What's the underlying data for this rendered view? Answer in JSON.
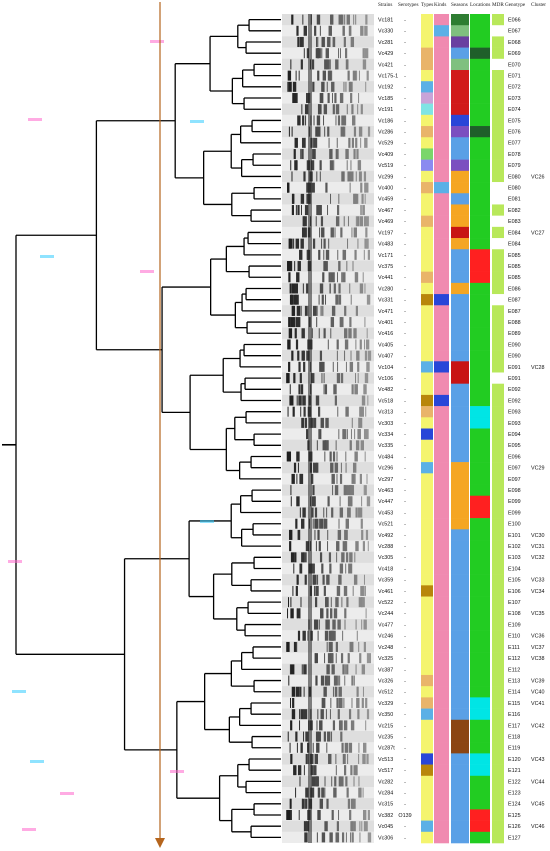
{
  "headers": [
    "Strains",
    "Serotypes",
    "Types",
    "Kinds",
    "Seasons",
    "Locations",
    "MDR",
    "Genotype",
    "Cluster"
  ],
  "strains": [
    "Vc181",
    "Vc330",
    "Vc281",
    "Vc429",
    "Vc421",
    "Vc175-1",
    "Vc192",
    "Vc185",
    "Vc191",
    "Vc186",
    "Vc286",
    "Vc529",
    "Vc409",
    "Vc519",
    "Vc299",
    "Vc400",
    "Vc459",
    "Vc467",
    "Vc469",
    "Vc197",
    "Vc483",
    "Vc171",
    "Vc375",
    "Vc441",
    "Vc280",
    "Vc331",
    "Vc471",
    "Vc401",
    "Vc416",
    "Vc405",
    "Vc407",
    "Vc104",
    "Vc106",
    "Vc482",
    "Vc518",
    "Vc313",
    "Vc303",
    "Vc334",
    "Vc335",
    "Vc484",
    "Vc296",
    "Vc297",
    "Vc463",
    "Vc447",
    "Vc453",
    "Vc521",
    "Vc492",
    "Vc288",
    "Vc305",
    "Vc418",
    "Vc359",
    "Vc461",
    "Vc522",
    "Vc244",
    "Vc477",
    "Vc246",
    "Vc248",
    "Vc325",
    "Vc387",
    "Vc326",
    "Vc512",
    "Vc329",
    "Vc350",
    "Vc215",
    "Vc235",
    "Vc287t",
    "Vc513",
    "Vc517",
    "Vc282",
    "Vc284",
    "Vc315",
    "Vc382",
    "Vc045",
    "Vc306"
  ],
  "serotypes": [
    "-",
    "-",
    "-",
    "-",
    "-",
    "-",
    "-",
    "-",
    "-",
    "-",
    "-",
    "-",
    "-",
    "-",
    "-",
    "-",
    "-",
    "-",
    "-",
    "-",
    "-",
    "-",
    "-",
    "-",
    "-",
    "-",
    "-",
    "-",
    "-",
    "-",
    "-",
    "-",
    "-",
    "-",
    "-",
    "-",
    "-",
    "-",
    "-",
    "-",
    "-",
    "-",
    "-",
    "-",
    "-",
    "-",
    "-",
    "-",
    "-",
    "-",
    "-",
    "-",
    "-",
    "-",
    "-",
    "-",
    "-",
    "-",
    "-",
    "-",
    "-",
    "-",
    "-",
    "-",
    "-",
    "-",
    "-",
    "-",
    "-",
    "-",
    "-",
    "O139",
    "-",
    "-"
  ],
  "genotypes": [
    "E066",
    "E067",
    "E068",
    "E069",
    "E070",
    "E071",
    "E072",
    "E073",
    "E074",
    "E075",
    "E076",
    "E077",
    "E078",
    "E079",
    "E080",
    "E080",
    "E081",
    "E082",
    "E083",
    "E084",
    "E084",
    "E085",
    "E085",
    "E085",
    "E086",
    "E087",
    "E087",
    "E088",
    "E089",
    "E090",
    "E090",
    "E091",
    "E091",
    "E092",
    "E092",
    "E093",
    "E093",
    "E094",
    "E095",
    "E096",
    "E097",
    "E097",
    "E098",
    "E099",
    "E099",
    "E100",
    "E101",
    "E102",
    "E103",
    "E104",
    "E105",
    "E106",
    "E107",
    "E108",
    "E109",
    "E110",
    "E111",
    "E112",
    "E112",
    "E113",
    "E114",
    "E115",
    "E116",
    "E117",
    "E118",
    "E119",
    "E120",
    "E121",
    "E122",
    "E123",
    "E124",
    "E125",
    "E126",
    "E127"
  ],
  "clusters": [
    "",
    "",
    "",
    "",
    "",
    "",
    "",
    "",
    "",
    "",
    "",
    "",
    "",
    "",
    "VC26",
    "",
    "",
    "",
    "",
    "VC27",
    "",
    "",
    "",
    "",
    "",
    "",
    "",
    "",
    "",
    "",
    "",
    "VC28",
    "",
    "",
    "",
    "",
    "",
    "",
    "",
    "",
    "VC29",
    "",
    "",
    "",
    "",
    "",
    "VC30",
    "VC31",
    "VC32",
    "",
    "VC33",
    "VC34",
    "",
    "VC35",
    "",
    "VC36",
    "VC37",
    "VC38",
    "",
    "VC39",
    "VC40",
    "VC41",
    "",
    "VC42",
    "",
    "",
    "VC43",
    "",
    "VC44",
    "",
    "VC45",
    "",
    "VC46",
    ""
  ],
  "colors": {
    "types": [
      "#f4f46e",
      "#f4f46e",
      "#f4f46e",
      "#e9b46a",
      "#e9b46a",
      "#f4f46e",
      "#5bb0e6",
      "#c9a4d8",
      "#7fe4e4",
      "#f4f46e",
      "#e9b46a",
      "#f4f46e",
      "#7ad66a",
      "#8a8af0",
      "#f4f46e",
      "#e9b46a",
      "#f4f46e",
      "#f4f46e",
      "#e9b46a",
      "#f4f46e",
      "#f4f46e",
      "#f4f46e",
      "#f4f46e",
      "#e9b46a",
      "#f4f46e",
      "#b8860b",
      "#f4f46e",
      "#f4f46e",
      "#f4f46e",
      "#f4f46e",
      "#f4f46e",
      "#5bb0e6",
      "#f4f46e",
      "#f4f46e",
      "#b8860b",
      "#e9b46a",
      "#f4f46e",
      "#2846d8",
      "#f4f46e",
      "#f4f46e",
      "#5bb0e6",
      "#f4f46e",
      "#f4f46e",
      "#f4f46e",
      "#f4f46e",
      "#f4f46e",
      "#f4f46e",
      "#f4f46e",
      "#f4f46e",
      "#f4f46e",
      "#f4f46e",
      "#b8860b",
      "#f4f46e",
      "#f4f46e",
      "#f4f46e",
      "#f4f46e",
      "#f4f46e",
      "#f4f46e",
      "#f4f46e",
      "#e9b46a",
      "#f4f46e",
      "#e9b46a",
      "#5bb0e6",
      "#f4f46e",
      "#f4f46e",
      "#f4f46e",
      "#2846d8",
      "#b8860b",
      "#f4f46e",
      "#f4f46e",
      "#f4f46e",
      "#f4f46e",
      "#5bb0e6",
      "#f4f46e"
    ],
    "kinds": [
      "#f08ab0",
      "#5bb0e6",
      "#f08ab0",
      "#f08ab0",
      "#f08ab0",
      "#f08ab0",
      "#f08ab0",
      "#f08ab0",
      "#f08ab0",
      "#f08ab0",
      "#f08ab0",
      "#f08ab0",
      "#f08ab0",
      "#f08ab0",
      "#f08ab0",
      "#5bb0e6",
      "#f08ab0",
      "#f08ab0",
      "#f08ab0",
      "#f08ab0",
      "#f08ab0",
      "#f08ab0",
      "#f08ab0",
      "#f08ab0",
      "#f08ab0",
      "#2846d8",
      "#f08ab0",
      "#f08ab0",
      "#f08ab0",
      "#f08ab0",
      "#f08ab0",
      "#2846d8",
      "#f08ab0",
      "#f08ab0",
      "#2846d8",
      "#f08ab0",
      "#f08ab0",
      "#f08ab0",
      "#f08ab0",
      "#f08ab0",
      "#f08ab0",
      "#f08ab0",
      "#f08ab0",
      "#f08ab0",
      "#f08ab0",
      "#f08ab0",
      "#f08ab0",
      "#f08ab0",
      "#f08ab0",
      "#f08ab0",
      "#f08ab0",
      "#f08ab0",
      "#f08ab0",
      "#f08ab0",
      "#f08ab0",
      "#f08ab0",
      "#f08ab0",
      "#f08ab0",
      "#f08ab0",
      "#f08ab0",
      "#f08ab0",
      "#f08ab0",
      "#f08ab0",
      "#f08ab0",
      "#f08ab0",
      "#f08ab0",
      "#f08ab0",
      "#f08ab0",
      "#f08ab0",
      "#f08ab0",
      "#f08ab0",
      "#f08ab0",
      "#f08ab0",
      "#f08ab0"
    ],
    "seasons": [
      "#2e7d32",
      "#7fc07f",
      "#6a3fa0",
      "#5aa0e6",
      "#7fc07f",
      "#d11a1a",
      "#d11a1a",
      "#d11a1a",
      "#d11a1a",
      "#2846d8",
      "#7b4fc0",
      "#5aa0e6",
      "#5aa0e6",
      "#7b4fc0",
      "#f5a623",
      "#f5a623",
      "#5aa0e6",
      "#f5a623",
      "#f5a623",
      "#c81414",
      "#f5a623",
      "#5aa0e6",
      "#5aa0e6",
      "#5aa0e6",
      "#f5a623",
      "#5aa0e6",
      "#5aa0e6",
      "#5aa0e6",
      "#5aa0e6",
      "#5aa0e6",
      "#5aa0e6",
      "#c81414",
      "#c81414",
      "#5aa0e6",
      "#5aa0e6",
      "#5aa0e6",
      "#5aa0e6",
      "#5aa0e6",
      "#5aa0e6",
      "#5aa0e6",
      "#f5a623",
      "#f5a623",
      "#f5a623",
      "#f5a623",
      "#f5a623",
      "#f5a623",
      "#5aa0e6",
      "#5aa0e6",
      "#5aa0e6",
      "#5aa0e6",
      "#5aa0e6",
      "#5aa0e6",
      "#5aa0e6",
      "#5aa0e6",
      "#5aa0e6",
      "#5aa0e6",
      "#5aa0e6",
      "#5aa0e6",
      "#5aa0e6",
      "#5aa0e6",
      "#5aa0e6",
      "#5aa0e6",
      "#5aa0e6",
      "#8b4513",
      "#8b4513",
      "#8b4513",
      "#5aa0e6",
      "#5aa0e6",
      "#5aa0e6",
      "#5aa0e6",
      "#5aa0e6",
      "#5aa0e6",
      "#5aa0e6",
      "#5aa0e6"
    ],
    "locations": [
      "#22cc22",
      "#22cc22",
      "#22cc22",
      "#1f5f2a",
      "#22cc22",
      "#22cc22",
      "#22cc22",
      "#22cc22",
      "#22cc22",
      "#22cc22",
      "#1f5f2a",
      "#22cc22",
      "#22cc22",
      "#22cc22",
      "#22cc22",
      "#22cc22",
      "#22cc22",
      "#22cc22",
      "#22cc22",
      "#22cc22",
      "#22cc22",
      "#ff2020",
      "#ff2020",
      "#ff2020",
      "#22cc22",
      "#22cc22",
      "#22cc22",
      "#22cc22",
      "#22cc22",
      "#22cc22",
      "#22cc22",
      "#22cc22",
      "#22cc22",
      "#22cc22",
      "#22cc22",
      "#00e5e5",
      "#00e5e5",
      "#22cc22",
      "#22cc22",
      "#22cc22",
      "#22cc22",
      "#22cc22",
      "#22cc22",
      "#ff2020",
      "#ff2020",
      "#22cc22",
      "#22cc22",
      "#22cc22",
      "#22cc22",
      "#22cc22",
      "#22cc22",
      "#22cc22",
      "#22cc22",
      "#22cc22",
      "#22cc22",
      "#22cc22",
      "#22cc22",
      "#22cc22",
      "#22cc22",
      "#22cc22",
      "#22cc22",
      "#00e5e5",
      "#00e5e5",
      "#22cc22",
      "#22cc22",
      "#22cc22",
      "#00e5e5",
      "#00e5e5",
      "#22cc22",
      "#22cc22",
      "#22cc22",
      "#ff2020",
      "#ff2020",
      "#22cc22"
    ],
    "mdr": [
      "#b8e85a",
      "#ffffff",
      "#b8e85a",
      "#b8e85a",
      "#ffffff",
      "#b8e85a",
      "#b8e85a",
      "#b8e85a",
      "#b8e85a",
      "#b8e85a",
      "#b8e85a",
      "#b8e85a",
      "#b8e85a",
      "#b8e85a",
      "#b8e85a",
      "#ffffff",
      "#ffffff",
      "#b8e85a",
      "#ffffff",
      "#b8e85a",
      "#ffffff",
      "#b8e85a",
      "#b8e85a",
      "#b8e85a",
      "#b8e85a",
      "#ffffff",
      "#b8e85a",
      "#b8e85a",
      "#b8e85a",
      "#b8e85a",
      "#b8e85a",
      "#b8e85a",
      "#ffffff",
      "#b8e85a",
      "#b8e85a",
      "#b8e85a",
      "#b8e85a",
      "#b8e85a",
      "#b8e85a",
      "#b8e85a",
      "#b8e85a",
      "#b8e85a",
      "#b8e85a",
      "#b8e85a",
      "#b8e85a",
      "#b8e85a",
      "#b8e85a",
      "#b8e85a",
      "#b8e85a",
      "#b8e85a",
      "#b8e85a",
      "#b8e85a",
      "#b8e85a",
      "#b8e85a",
      "#b8e85a",
      "#b8e85a",
      "#b8e85a",
      "#b8e85a",
      "#b8e85a",
      "#b8e85a",
      "#b8e85a",
      "#b8e85a",
      "#b8e85a",
      "#b8e85a",
      "#b8e85a",
      "#b8e85a",
      "#b8e85a",
      "#b8e85a",
      "#b8e85a",
      "#b8e85a",
      "#b8e85a",
      "#b8e85a",
      "#b8e85a",
      "#b8e85a"
    ],
    "cutoff_line": "#b5651d"
  }
}
